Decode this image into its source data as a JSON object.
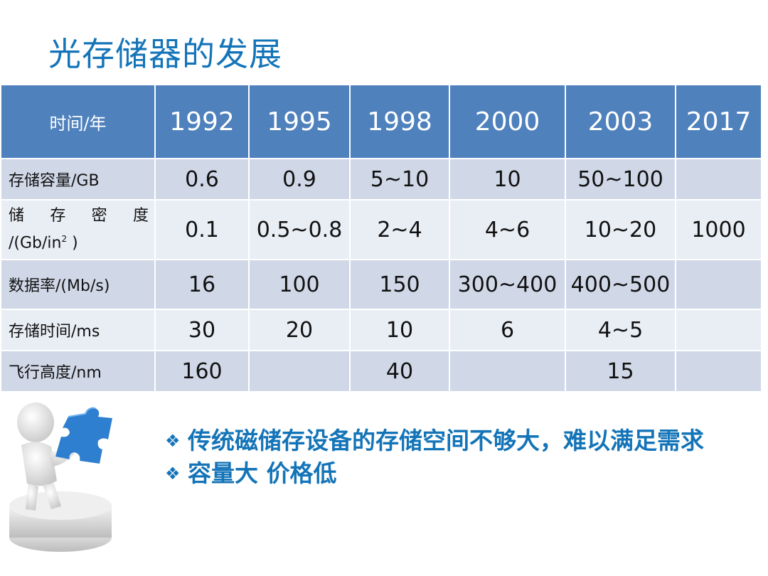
{
  "title": "光存储器的发展",
  "table": {
    "header": [
      "时间/年",
      "1992",
      "1995",
      "1998",
      "2000",
      "2003",
      "2017"
    ],
    "rows": [
      {
        "label": "存储容量/GB",
        "cells": [
          "0.6",
          "0.9",
          "5~10",
          "10",
          "50~100",
          ""
        ]
      },
      {
        "label_line1": [
          "储",
          "存",
          "密",
          "度"
        ],
        "label_line2": "/(Gb/in",
        "label_sup": "2",
        "label_tail": " )",
        "cells": [
          "0.1",
          "0.5~0.8",
          "2~4",
          "4~6",
          "10~20",
          "1000"
        ]
      },
      {
        "label": "数据率/(Mb/s)",
        "cells": [
          "16",
          "100",
          "150",
          "300~400",
          "400~500",
          ""
        ]
      },
      {
        "label": "存储时间/ms",
        "cells": [
          "30",
          "20",
          "10",
          "6",
          "4~5",
          ""
        ]
      },
      {
        "label": "飞行高度/nm",
        "cells": [
          "160",
          "",
          "40",
          "",
          "15",
          ""
        ]
      }
    ]
  },
  "bullets": [
    {
      "mark": "❖",
      "text": "传统磁储存设备的存储空间不够大，难以满足需求"
    },
    {
      "mark": "❖",
      "text": "容量大 价格低"
    }
  ],
  "colors": {
    "title": "#1474b8",
    "header_bg": "#4f81bd",
    "row_odd": "#d0d8e8",
    "row_even": "#e9edf4",
    "puzzle": "#2f7fd0"
  }
}
